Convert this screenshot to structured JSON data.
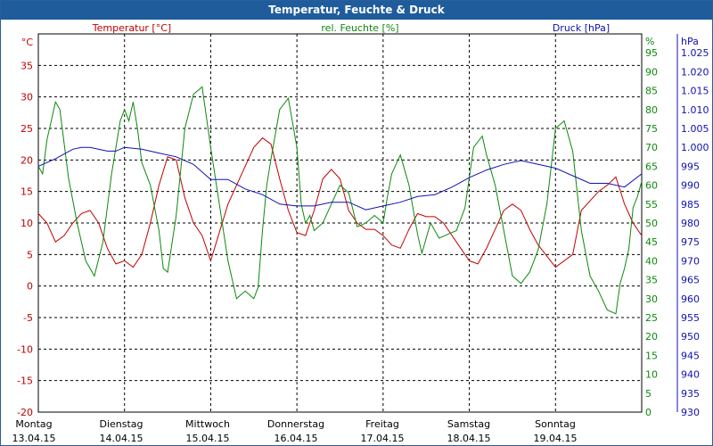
{
  "window": {
    "title": "Temperatur, Feuchte & Druck"
  },
  "colors": {
    "titlebar": "#1f5c9c",
    "temp": "#c00000",
    "humidity": "#0b8a0b",
    "pressure": "#1010b0",
    "grid": "#000000"
  },
  "chart_data": {
    "type": "line",
    "title": "Temperatur, Feuchte & Druck",
    "grid": true,
    "x_range": [
      0,
      7
    ],
    "x_ticks": [
      {
        "day": "Montag",
        "date": "13.04.15"
      },
      {
        "day": "Dienstag",
        "date": "14.04.15"
      },
      {
        "day": "Mittwoch",
        "date": "15.04.15"
      },
      {
        "day": "Donnerstag",
        "date": "16.04.15"
      },
      {
        "day": "Freitag",
        "date": "17.04.15"
      },
      {
        "day": "Samstag",
        "date": "18.04.15"
      },
      {
        "day": "Sonntag",
        "date": "19.04.15"
      }
    ],
    "axes": {
      "left": {
        "label": "Temperatur [°C]",
        "unit": "°C",
        "range": [
          -20,
          40
        ],
        "ticks": [
          "35",
          "30",
          "25",
          "20",
          "15",
          "10",
          "5",
          "0",
          "-5",
          "-10",
          "-15",
          "-20"
        ]
      },
      "right1": {
        "label": "rel. Feuchte [%]",
        "unit": "%",
        "range": [
          0,
          100
        ],
        "ticks": [
          "95",
          "90",
          "85",
          "80",
          "75",
          "70",
          "65",
          "60",
          "55",
          "50",
          "45",
          "40",
          "35",
          "30",
          "25",
          "20",
          "15",
          "10",
          "5",
          "0"
        ]
      },
      "right2": {
        "label": "Druck [hPa]",
        "unit": "hPa",
        "range": [
          930,
          1030
        ],
        "ticks": [
          "1.025",
          "1.020",
          "1.015",
          "1.010",
          "1.005",
          "1.000",
          "995",
          "990",
          "985",
          "980",
          "975",
          "970",
          "965",
          "960",
          "955",
          "950",
          "945",
          "940",
          "935",
          "930"
        ]
      }
    },
    "series": [
      {
        "name": "Temperatur [°C]",
        "axis": "left",
        "x": [
          0,
          0.1,
          0.2,
          0.3,
          0.4,
          0.5,
          0.6,
          0.7,
          0.8,
          0.9,
          1.0,
          1.1,
          1.2,
          1.3,
          1.4,
          1.5,
          1.6,
          1.7,
          1.8,
          1.9,
          2.0,
          2.2,
          2.4,
          2.5,
          2.6,
          2.7,
          2.8,
          2.9,
          3.0,
          3.1,
          3.2,
          3.3,
          3.4,
          3.5,
          3.6,
          3.7,
          3.8,
          3.9,
          4.0,
          4.1,
          4.2,
          4.3,
          4.4,
          4.5,
          4.6,
          4.7,
          4.8,
          4.9,
          5.0,
          5.1,
          5.2,
          5.3,
          5.4,
          5.5,
          5.6,
          5.7,
          5.8,
          6.0,
          6.2,
          6.3,
          6.5,
          6.6,
          6.7,
          6.8,
          6.9,
          7.0
        ],
        "values": [
          11.5,
          10,
          7,
          8,
          10,
          11.5,
          12,
          10,
          6,
          3.5,
          4,
          3,
          5,
          10,
          16,
          20.5,
          20,
          14,
          10,
          8,
          4,
          13,
          19,
          22,
          23.5,
          22.5,
          17,
          12,
          8.5,
          8,
          12,
          17,
          18.5,
          17,
          12,
          10,
          9,
          9,
          8,
          6.5,
          6,
          9,
          11.5,
          11,
          11,
          10,
          8,
          6,
          4,
          3.5,
          6,
          9,
          12,
          13,
          12,
          9,
          6.5,
          3,
          5,
          12,
          15,
          16,
          17.3,
          13,
          10,
          8
        ]
      },
      {
        "name": "rel. Feuchte [%]",
        "axis": "right1",
        "x": [
          0,
          0.05,
          0.1,
          0.2,
          0.25,
          0.35,
          0.45,
          0.55,
          0.65,
          0.75,
          0.85,
          0.95,
          1.0,
          1.05,
          1.1,
          1.15,
          1.2,
          1.3,
          1.4,
          1.45,
          1.5,
          1.6,
          1.7,
          1.8,
          1.9,
          2.0,
          2.1,
          2.2,
          2.3,
          2.4,
          2.5,
          2.55,
          2.6,
          2.65,
          2.7,
          2.8,
          2.9,
          3.0,
          3.05,
          3.1,
          3.15,
          3.2,
          3.3,
          3.4,
          3.5,
          3.6,
          3.7,
          3.8,
          3.9,
          4.0,
          4.05,
          4.1,
          4.2,
          4.3,
          4.4,
          4.45,
          4.55,
          4.65,
          4.75,
          4.85,
          4.95,
          5.05,
          5.15,
          5.2,
          5.3,
          5.4,
          5.5,
          5.6,
          5.7,
          5.8,
          5.9,
          6.0,
          6.1,
          6.2,
          6.3,
          6.4,
          6.5,
          6.6,
          6.7,
          6.75,
          6.8,
          6.85,
          6.9,
          6.95,
          7.0
        ],
        "values": [
          65,
          63,
          72,
          82,
          80,
          62,
          50,
          40,
          36,
          45,
          63,
          77,
          80,
          77,
          82,
          75,
          66,
          60,
          48,
          38,
          37,
          52,
          75,
          84,
          86,
          70,
          55,
          40,
          30,
          32,
          30,
          33,
          48,
          60,
          67,
          80,
          83,
          70,
          55,
          50,
          52,
          48,
          50,
          55,
          60,
          58,
          49,
          50,
          52,
          50,
          57,
          63,
          68,
          60,
          47,
          42,
          50,
          46,
          47,
          48,
          54,
          70,
          73,
          68,
          60,
          48,
          36,
          34,
          37,
          43,
          55,
          75,
          77,
          69,
          48,
          36,
          32,
          27,
          26,
          34,
          38,
          43,
          54,
          57,
          61
        ]
      },
      {
        "name": "Druck [hPa]",
        "axis": "right2",
        "x": [
          0,
          0.2,
          0.4,
          0.5,
          0.6,
          0.8,
          0.9,
          1.0,
          1.2,
          1.4,
          1.6,
          1.8,
          2.0,
          2.2,
          2.4,
          2.6,
          2.8,
          3.0,
          3.2,
          3.4,
          3.6,
          3.8,
          4.0,
          4.2,
          4.4,
          4.6,
          4.8,
          5.0,
          5.2,
          5.4,
          5.6,
          5.8,
          6.0,
          6.2,
          6.4,
          6.6,
          6.8,
          7.0
        ],
        "values": [
          995,
          997,
          999.5,
          1000,
          1000,
          999,
          999,
          1000,
          999.5,
          998.5,
          997.5,
          995.5,
          991.5,
          991.5,
          989,
          987.5,
          985,
          984.5,
          984.5,
          985.5,
          985.5,
          983.5,
          984.5,
          985.5,
          987,
          987.5,
          989.5,
          992,
          994,
          995.5,
          996.5,
          995.5,
          994.5,
          992.5,
          990.5,
          990.5,
          989.5,
          993
        ]
      }
    ]
  }
}
